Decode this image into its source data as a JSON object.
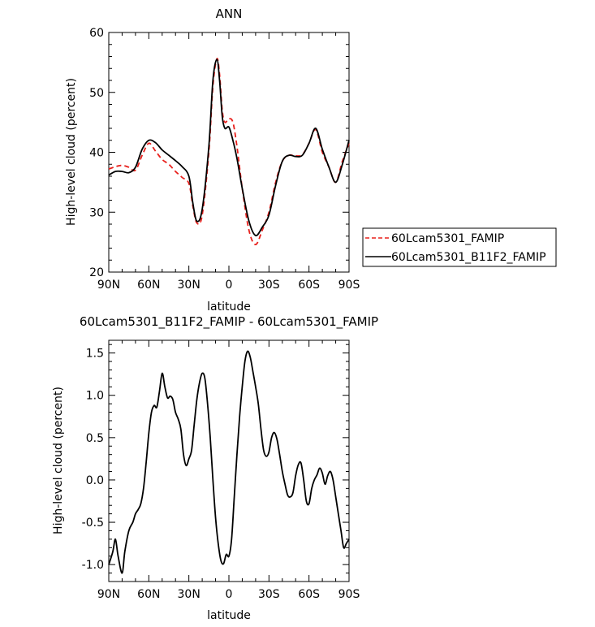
{
  "chart_data": [
    {
      "type": "line",
      "title": "ANN",
      "xlabel": "latitude",
      "ylabel": "High-level cloud (percent)",
      "x_tick_labels": [
        "90N",
        "60N",
        "30N",
        "0",
        "30S",
        "60S",
        "90S"
      ],
      "y_tick_labels": [
        "20",
        "30",
        "40",
        "50",
        "60"
      ],
      "xlim": [
        90,
        -90
      ],
      "ylim": [
        20,
        60
      ],
      "legend_position": "right",
      "series": [
        {
          "name": "60Lcam5301_FAMIP",
          "color": "#e8201c",
          "style": "dashed",
          "x": [
            90,
            85,
            80,
            75,
            70,
            65,
            60,
            55,
            50,
            45,
            40,
            35,
            30,
            27,
            24,
            20,
            15,
            12,
            9,
            7,
            5,
            3,
            0,
            -3,
            -6,
            -10,
            -15,
            -20,
            -25,
            -30,
            -35,
            -40,
            -45,
            -50,
            -55,
            -60,
            -65,
            -70,
            -75,
            -80,
            -85,
            -90
          ],
          "y": [
            37.2,
            37.6,
            37.8,
            37.5,
            37.0,
            39.5,
            41.5,
            40.2,
            38.8,
            38.0,
            36.8,
            35.8,
            34.8,
            31.0,
            28.2,
            29.5,
            40.0,
            51.0,
            55.6,
            53.0,
            47.0,
            45.0,
            45.6,
            45.0,
            41.0,
            34.0,
            27.0,
            24.6,
            27.0,
            30.0,
            35.0,
            38.5,
            39.5,
            39.4,
            39.6,
            41.5,
            43.8,
            40.0,
            37.5,
            35.0,
            38.5,
            41.5
          ]
        },
        {
          "name": "60Lcam5301_B11F2_FAMIP",
          "color": "#000000",
          "style": "solid",
          "x": [
            90,
            85,
            80,
            75,
            70,
            65,
            60,
            55,
            50,
            45,
            40,
            35,
            30,
            27,
            24,
            20,
            15,
            12,
            9,
            7,
            5,
            3,
            0,
            -3,
            -6,
            -10,
            -15,
            -20,
            -25,
            -30,
            -35,
            -40,
            -45,
            -50,
            -55,
            -60,
            -65,
            -70,
            -75,
            -80,
            -85,
            -90
          ],
          "y": [
            36.2,
            36.8,
            36.8,
            36.6,
            37.5,
            40.5,
            42.0,
            41.6,
            40.4,
            39.5,
            38.6,
            37.6,
            36.0,
            31.5,
            28.5,
            30.5,
            41.0,
            52.0,
            55.5,
            52.0,
            46.0,
            44.0,
            44.2,
            42.0,
            39.0,
            34.0,
            28.5,
            26.1,
            27.5,
            29.5,
            34.5,
            38.5,
            39.5,
            39.3,
            39.5,
            41.5,
            44.0,
            40.5,
            37.5,
            35.0,
            38.0,
            42.0
          ]
        }
      ]
    },
    {
      "type": "line",
      "title": "60Lcam5301_B11F2_FAMIP - 60Lcam5301_FAMIP",
      "xlabel": "latitude",
      "ylabel": "High-level cloud (percent)",
      "x_tick_labels": [
        "90N",
        "60N",
        "30N",
        "0",
        "30S",
        "60S",
        "90S"
      ],
      "y_tick_labels": [
        "-1.0",
        "-0.5",
        "0.0",
        "0.5",
        "1.0",
        "1.5"
      ],
      "xlim": [
        90,
        -90
      ],
      "ylim": [
        -1.2,
        1.65
      ],
      "series": [
        {
          "color": "#000000",
          "style": "solid",
          "x": [
            90,
            87,
            85,
            83,
            80,
            78,
            75,
            72,
            70,
            68,
            66,
            64,
            62,
            60,
            58,
            56,
            54,
            52,
            50,
            48,
            46,
            44,
            42,
            40,
            38,
            36,
            34,
            32,
            30,
            28,
            26,
            24,
            22,
            20,
            18,
            16,
            14,
            12,
            10,
            8,
            6,
            4,
            2,
            0,
            -2,
            -4,
            -6,
            -8,
            -10,
            -12,
            -14,
            -16,
            -18,
            -20,
            -22,
            -24,
            -26,
            -28,
            -30,
            -32,
            -34,
            -36,
            -38,
            -40,
            -42,
            -44,
            -46,
            -48,
            -50,
            -52,
            -54,
            -56,
            -58,
            -60,
            -62,
            -64,
            -66,
            -68,
            -70,
            -72,
            -74,
            -76,
            -78,
            -80,
            -82,
            -84,
            -86,
            -88,
            -90
          ],
          "y": [
            -1.0,
            -0.85,
            -0.7,
            -0.9,
            -1.1,
            -0.85,
            -0.6,
            -0.5,
            -0.4,
            -0.35,
            -0.28,
            -0.1,
            0.2,
            0.55,
            0.8,
            0.88,
            0.86,
            1.05,
            1.26,
            1.1,
            0.97,
            0.99,
            0.95,
            0.8,
            0.72,
            0.6,
            0.3,
            0.17,
            0.25,
            0.35,
            0.65,
            0.95,
            1.15,
            1.26,
            1.2,
            0.9,
            0.5,
            0.0,
            -0.45,
            -0.75,
            -0.95,
            -0.99,
            -0.88,
            -0.9,
            -0.7,
            -0.2,
            0.3,
            0.75,
            1.1,
            1.4,
            1.52,
            1.45,
            1.28,
            1.1,
            0.9,
            0.6,
            0.35,
            0.28,
            0.33,
            0.5,
            0.56,
            0.48,
            0.3,
            0.1,
            -0.05,
            -0.18,
            -0.2,
            -0.15,
            0.05,
            0.18,
            0.2,
            0.0,
            -0.25,
            -0.28,
            -0.1,
            0.0,
            0.06,
            0.14,
            0.08,
            -0.05,
            0.05,
            0.1,
            0.0,
            -0.2,
            -0.4,
            -0.6,
            -0.8,
            -0.75,
            -0.7
          ]
        }
      ]
    }
  ]
}
